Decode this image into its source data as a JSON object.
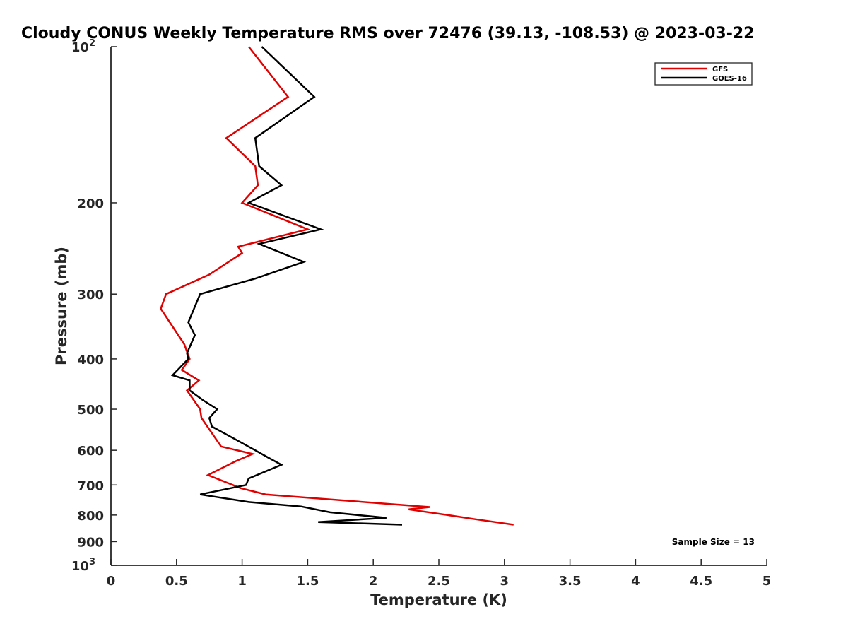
{
  "chart_data": {
    "type": "line",
    "title": "Cloudy CONUS Weekly Temperature RMS over 72476 (39.13, -108.53) @ 2023-03-22",
    "xlabel": "Temperature (K)",
    "ylabel": "Pressure (mb)",
    "xlim": [
      0,
      5
    ],
    "ylim": [
      100,
      1000
    ],
    "yscale": "log",
    "y_direction": "reversed",
    "x_ticks": [
      0,
      0.5,
      1,
      1.5,
      2,
      2.5,
      3,
      3.5,
      4,
      4.5,
      5
    ],
    "x_tick_labels": [
      "0",
      "0.5",
      "1",
      "1.5",
      "2",
      "2.5",
      "3",
      "3.5",
      "4",
      "4.5",
      "5"
    ],
    "y_ticks": [
      100,
      200,
      300,
      400,
      500,
      600,
      700,
      800,
      900,
      1000
    ],
    "y_tick_labels": [
      {
        "base": "10",
        "exp": "2"
      },
      {
        "base": "200",
        "exp": ""
      },
      {
        "base": "300",
        "exp": ""
      },
      {
        "base": "400",
        "exp": ""
      },
      {
        "base": "500",
        "exp": ""
      },
      {
        "base": "600",
        "exp": ""
      },
      {
        "base": "700",
        "exp": ""
      },
      {
        "base": "800",
        "exp": ""
      },
      {
        "base": "900",
        "exp": ""
      },
      {
        "base": "10",
        "exp": "3"
      }
    ],
    "grid": false,
    "legend_position": "top-right",
    "annotation": "Sample Size = 13",
    "series": [
      {
        "name": "GFS",
        "color": "#e00000",
        "points": [
          [
            1.05,
            100
          ],
          [
            1.35,
            125
          ],
          [
            0.88,
            150
          ],
          [
            1.1,
            170
          ],
          [
            1.12,
            185
          ],
          [
            1.0,
            200
          ],
          [
            1.5,
            225
          ],
          [
            0.97,
            243
          ],
          [
            1.0,
            250
          ],
          [
            0.75,
            275
          ],
          [
            0.42,
            300
          ],
          [
            0.38,
            320
          ],
          [
            0.56,
            375
          ],
          [
            0.6,
            400
          ],
          [
            0.54,
            420
          ],
          [
            0.67,
            440
          ],
          [
            0.58,
            460
          ],
          [
            0.68,
            500
          ],
          [
            0.69,
            520
          ],
          [
            0.84,
            590
          ],
          [
            1.08,
            610
          ],
          [
            0.95,
            630
          ],
          [
            0.74,
            670
          ],
          [
            0.99,
            710
          ],
          [
            1.18,
            730
          ],
          [
            2.43,
            772
          ],
          [
            2.27,
            780
          ],
          [
            2.57,
            800
          ],
          [
            2.78,
            815
          ],
          [
            3.07,
            835
          ]
        ]
      },
      {
        "name": "GOES-16",
        "color": "#000000",
        "points": [
          [
            1.15,
            100
          ],
          [
            1.55,
            125
          ],
          [
            1.1,
            150
          ],
          [
            1.13,
            170
          ],
          [
            1.3,
            185
          ],
          [
            1.05,
            200
          ],
          [
            1.6,
            225
          ],
          [
            1.13,
            240
          ],
          [
            1.47,
            260
          ],
          [
            1.1,
            280
          ],
          [
            0.68,
            300
          ],
          [
            0.59,
            340
          ],
          [
            0.64,
            360
          ],
          [
            0.58,
            390
          ],
          [
            0.59,
            400
          ],
          [
            0.47,
            430
          ],
          [
            0.6,
            440
          ],
          [
            0.6,
            460
          ],
          [
            0.7,
            480
          ],
          [
            0.81,
            500
          ],
          [
            0.75,
            520
          ],
          [
            0.77,
            540
          ],
          [
            0.94,
            570
          ],
          [
            1.1,
            600
          ],
          [
            1.2,
            620
          ],
          [
            1.3,
            640
          ],
          [
            1.05,
            680
          ],
          [
            1.03,
            700
          ],
          [
            0.68,
            730
          ],
          [
            1.05,
            755
          ],
          [
            1.45,
            770
          ],
          [
            1.67,
            790
          ],
          [
            2.1,
            810
          ],
          [
            1.58,
            825
          ],
          [
            2.22,
            835
          ]
        ]
      }
    ]
  }
}
